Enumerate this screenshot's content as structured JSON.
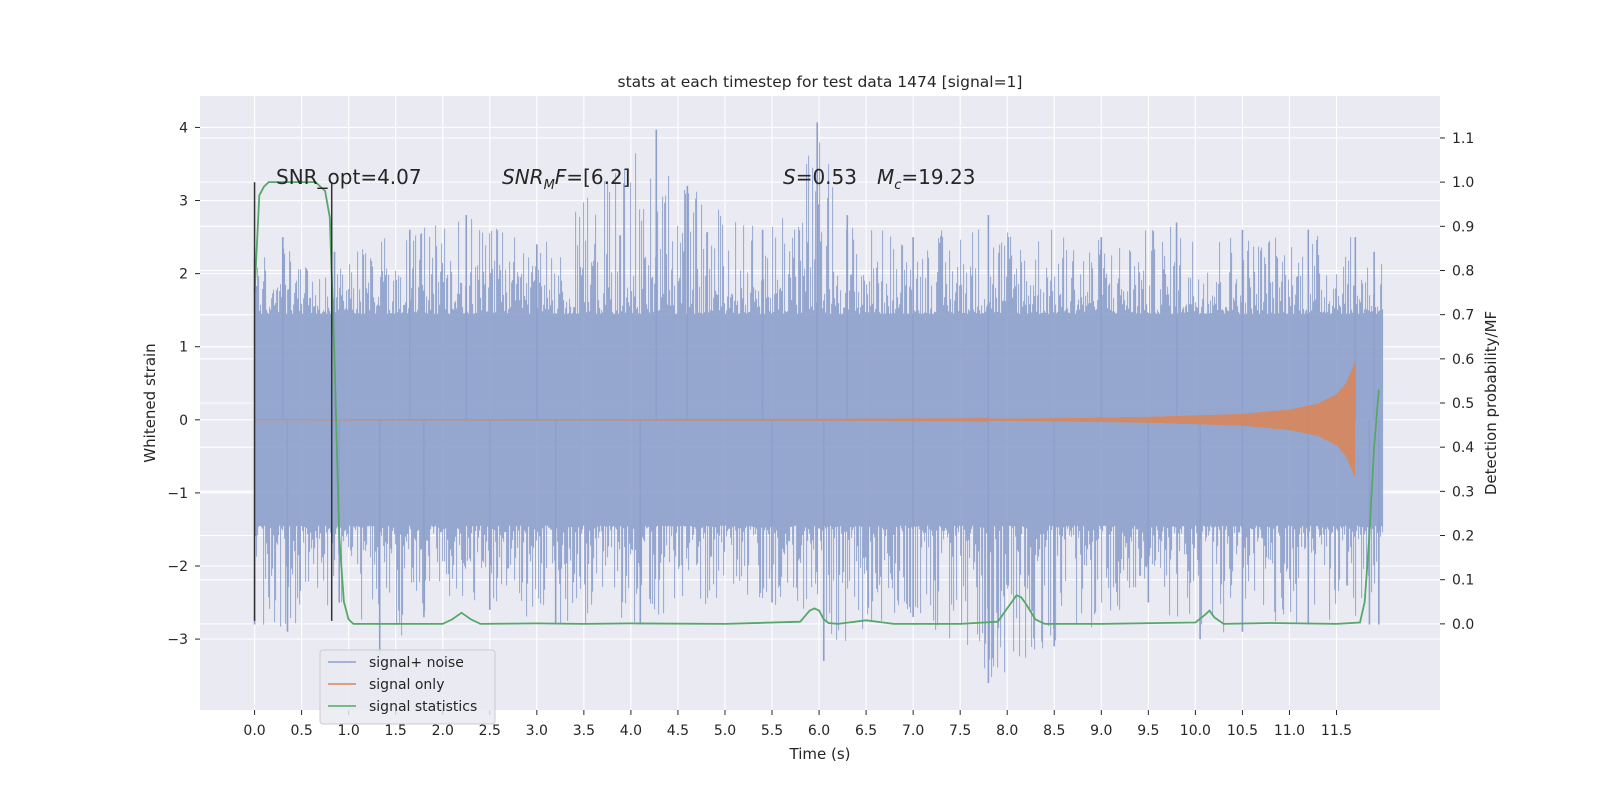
{
  "chart_data": {
    "type": "line",
    "title": "stats at each timestep for test data 1474 [signal=1]",
    "xlabel": "Time (s)",
    "ylabel_left": "Whitened strain",
    "ylabel_right": "Detection probability/MF",
    "xlim": [
      -0.58,
      12.6
    ],
    "ylim_left": [
      -3.97,
      4.43
    ],
    "ylim_right": [
      -0.195,
      1.195
    ],
    "x_ticks": [
      "0.0",
      "0.5",
      "1.0",
      "1.5",
      "2.0",
      "2.5",
      "3.0",
      "3.5",
      "4.0",
      "4.5",
      "5.0",
      "5.5",
      "6.0",
      "6.5",
      "7.0",
      "7.5",
      "8.0",
      "8.5",
      "9.0",
      "9.5",
      "10.0",
      "10.5",
      "11.0",
      "11.5"
    ],
    "y_ticks_left": [
      "4",
      "3",
      "2",
      "1",
      "0",
      "−1",
      "−2",
      "−3"
    ],
    "y_ticks_right": [
      "1.1",
      "1.0",
      "0.9",
      "0.8",
      "0.7",
      "0.6",
      "0.5",
      "0.4",
      "0.3",
      "0.2",
      "0.1",
      "0.0"
    ],
    "grid": true,
    "legend_position": "lower-left",
    "annotations": {
      "snr_opt": "SNR_opt=4.07",
      "snr_mf": "=[6.2]",
      "s_value": "=0.53",
      "mc_value": "=19.23"
    },
    "colors": {
      "background": "#eaeaf2",
      "grid": "#ffffff",
      "noise": "#8da0cb",
      "signal": "#dd8452",
      "stats": "#55a868",
      "marker": "#333333"
    },
    "series": [
      {
        "name": "signal+ noise",
        "description_axis": "left",
        "x_range": [
          0.0,
          12.0
        ],
        "envelope_max": [
          [
            0.0,
            2.2
          ],
          [
            0.3,
            2.5
          ],
          [
            0.85,
            2.3
          ],
          [
            1.65,
            2.6
          ],
          [
            2.25,
            2.8
          ],
          [
            3.0,
            2.4
          ],
          [
            4.27,
            3.97
          ],
          [
            4.6,
            3.2
          ],
          [
            5.4,
            2.6
          ],
          [
            5.98,
            4.07
          ],
          [
            6.3,
            2.8
          ],
          [
            7.0,
            2.5
          ],
          [
            7.8,
            2.8
          ],
          [
            9.0,
            2.5
          ],
          [
            9.8,
            2.7
          ],
          [
            10.5,
            2.6
          ],
          [
            11.2,
            2.6
          ],
          [
            11.7,
            2.5
          ],
          [
            11.9,
            2.3
          ]
        ],
        "envelope_min": [
          [
            0.0,
            -2.8
          ],
          [
            0.35,
            -2.9
          ],
          [
            0.9,
            -2.5
          ],
          [
            1.33,
            -3.2
          ],
          [
            1.8,
            -2.7
          ],
          [
            2.5,
            -2.6
          ],
          [
            3.2,
            -2.8
          ],
          [
            4.1,
            -2.8
          ],
          [
            5.5,
            -2.5
          ],
          [
            6.05,
            -3.3
          ],
          [
            7.0,
            -2.7
          ],
          [
            7.8,
            -3.6
          ],
          [
            8.5,
            -3.1
          ],
          [
            9.5,
            -2.5
          ],
          [
            10.05,
            -3.0
          ],
          [
            10.5,
            -2.9
          ],
          [
            11.2,
            -2.8
          ],
          [
            11.85,
            -2.8
          ],
          [
            11.95,
            -2.8
          ]
        ]
      },
      {
        "name": "signal only",
        "description_axis": "left",
        "x": [
          0.0,
          6.0,
          7.5,
          8.5,
          9.5,
          10.5,
          11.0,
          11.3,
          11.5,
          11.6,
          11.65,
          11.7
        ],
        "amplitude": [
          0.0,
          0.005,
          0.01,
          0.02,
          0.04,
          0.08,
          0.14,
          0.22,
          0.35,
          0.5,
          0.65,
          0.8
        ]
      },
      {
        "name": "signal statistics",
        "description_axis": "right",
        "x": [
          0.0,
          0.05,
          0.1,
          0.15,
          0.2,
          0.3,
          0.4,
          0.5,
          0.6,
          0.65,
          0.7,
          0.75,
          0.8,
          0.85,
          0.9,
          0.95,
          1.0,
          1.05,
          1.1,
          1.2,
          2.0,
          2.1,
          2.2,
          2.3,
          2.4,
          3.0,
          3.5,
          4.0,
          5.0,
          5.8,
          5.9,
          5.95,
          6.0,
          6.05,
          6.1,
          6.2,
          6.5,
          6.8,
          7.5,
          7.9,
          8.0,
          8.1,
          8.15,
          8.2,
          8.3,
          8.4,
          9.0,
          10.0,
          10.1,
          10.15,
          10.2,
          10.3,
          10.8,
          11.5,
          11.75,
          11.8,
          11.85,
          11.9,
          11.95
        ],
        "y": [
          0.75,
          0.97,
          0.99,
          1.0,
          1.0,
          1.0,
          1.0,
          1.0,
          1.0,
          1.0,
          0.99,
          0.98,
          0.92,
          0.6,
          0.2,
          0.05,
          0.01,
          0.0,
          0.0,
          0.0,
          0.0,
          0.01,
          0.025,
          0.01,
          0.0,
          0.001,
          0.0,
          0.001,
          0.0,
          0.005,
          0.03,
          0.035,
          0.03,
          0.01,
          0.002,
          0.0,
          0.008,
          0.0,
          0.0,
          0.005,
          0.035,
          0.065,
          0.06,
          0.045,
          0.01,
          0.0,
          0.0,
          0.003,
          0.02,
          0.03,
          0.015,
          0.0,
          0.002,
          0.0,
          0.003,
          0.05,
          0.2,
          0.4,
          0.53
        ]
      }
    ],
    "markers": {
      "description": "vertical lines marking signal window",
      "x": [
        0.0,
        0.82
      ],
      "y_left": [
        -2.75,
        3.25
      ]
    }
  }
}
